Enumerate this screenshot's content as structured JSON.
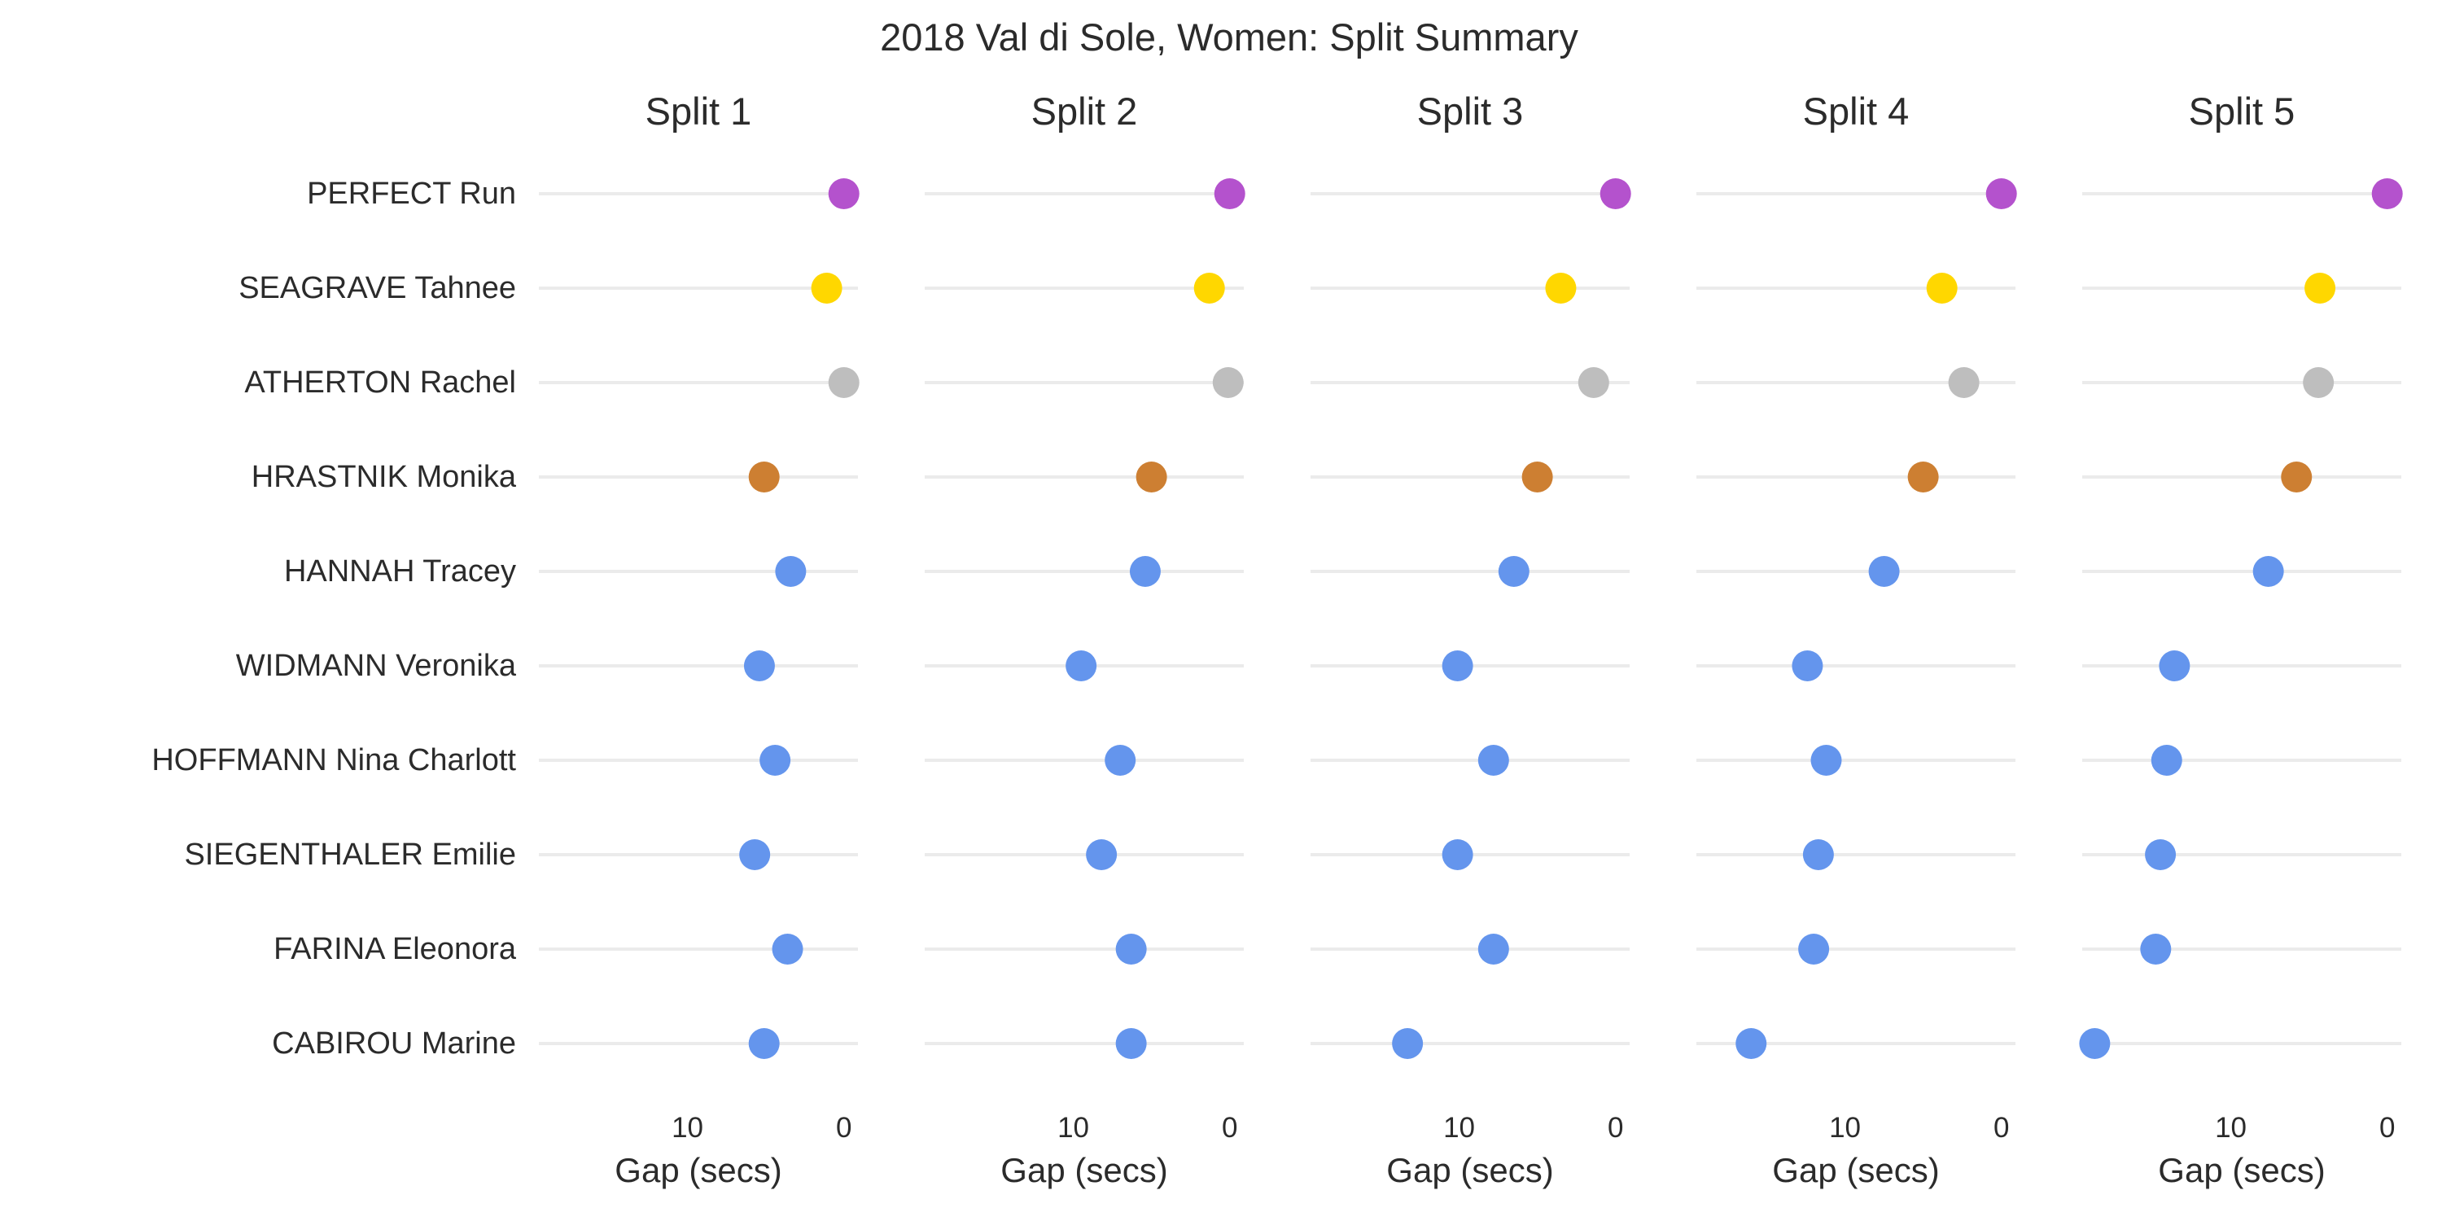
{
  "chart_data": {
    "type": "scatter",
    "title": "2018 Val di Sole, Women: Split Summary",
    "xlabel": "Gap (secs)",
    "x_reversed": true,
    "xlim": [
      -0.9,
      19.5
    ],
    "x_ticks": [
      10,
      0
    ],
    "grid": "horizontal",
    "riders": [
      "PERFECT Run",
      "SEAGRAVE Tahnee",
      "ATHERTON Rachel",
      "HRASTNIK Monika",
      "HANNAH Tracey",
      "WIDMANN Veronika",
      "HOFFMANN Nina Charlott",
      "SIEGENTHALER Emilie",
      "FARINA Eleonora",
      "CABIROU Marine"
    ],
    "point_colors": [
      "#b452cd",
      "#ffd700",
      "#bebebe",
      "#cd7f32",
      "#6495ed",
      "#6495ed",
      "#6495ed",
      "#6495ed",
      "#6495ed",
      "#6495ed"
    ],
    "panels": [
      {
        "name": "Split 1",
        "values": [
          0,
          1.1,
          0,
          5.1,
          3.4,
          5.4,
          4.4,
          5.7,
          3.6,
          5.1
        ]
      },
      {
        "name": "Split 2",
        "values": [
          0,
          1.3,
          0.1,
          5.0,
          5.4,
          9.5,
          7.0,
          8.2,
          6.3,
          6.3
        ]
      },
      {
        "name": "Split 3",
        "values": [
          0,
          3.5,
          1.4,
          5.0,
          6.5,
          10.1,
          7.8,
          10.1,
          7.8,
          13.3
        ]
      },
      {
        "name": "Split 4",
        "values": [
          0,
          3.8,
          2.4,
          5.0,
          7.5,
          12.4,
          11.2,
          11.7,
          12.0,
          16.0
        ]
      },
      {
        "name": "Split 5",
        "values": [
          0,
          4.3,
          4.4,
          5.8,
          7.6,
          13.6,
          14.1,
          14.5,
          14.8,
          18.7
        ]
      }
    ]
  }
}
